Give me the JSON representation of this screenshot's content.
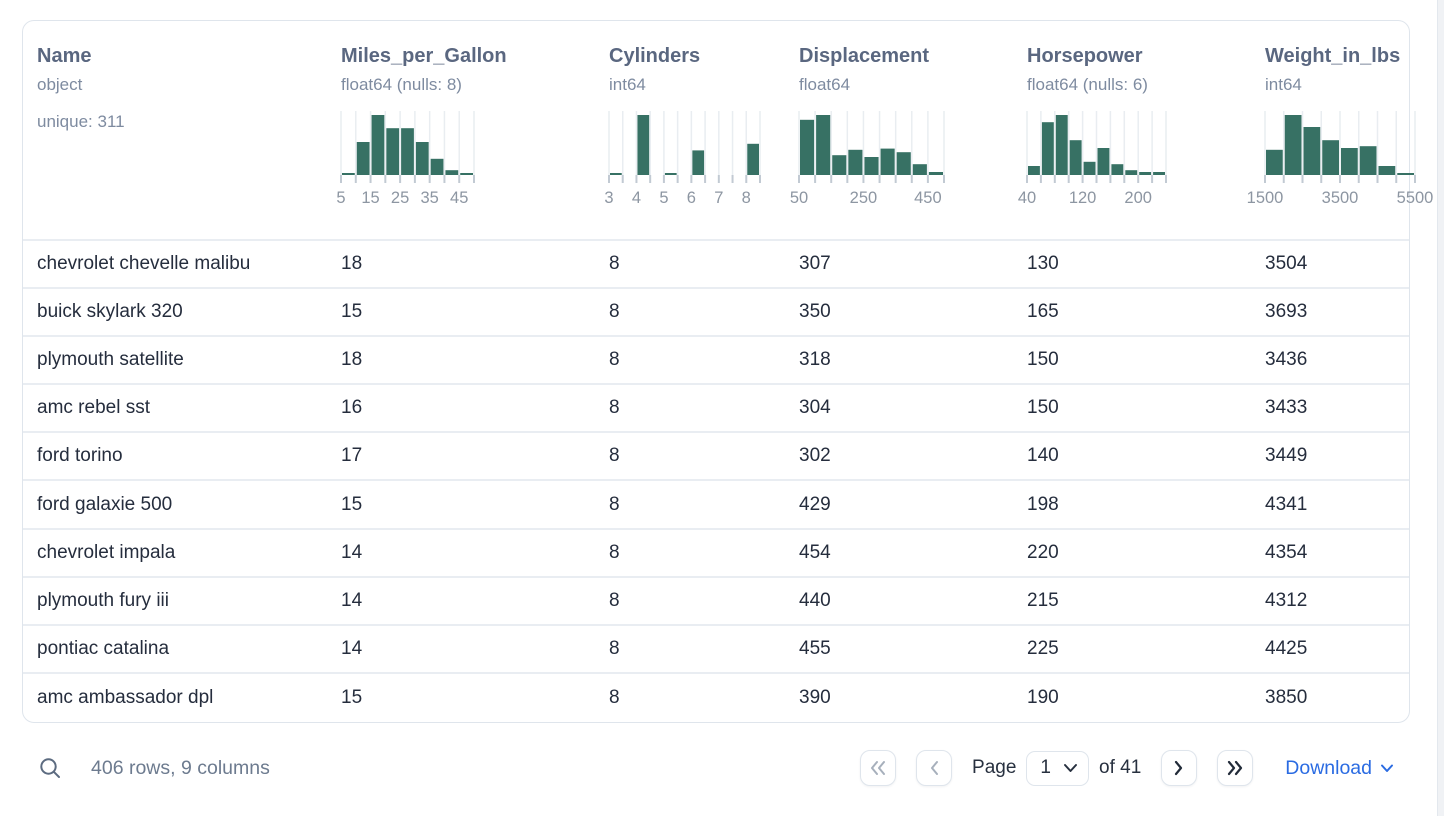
{
  "table": {
    "columns": [
      {
        "name": "Name",
        "type": "object",
        "extra": "unique: 311",
        "hist": null
      },
      {
        "name": "Miles_per_Gallon",
        "type": "float64 (nulls: 8)",
        "hist": {
          "bars": [
            2,
            55,
            100,
            78,
            78,
            55,
            27,
            8,
            2
          ],
          "labels": [
            "5",
            "15",
            "25",
            "35",
            "45"
          ],
          "label_edges": [
            0,
            2,
            4,
            6,
            8
          ]
        }
      },
      {
        "name": "Cylinders",
        "type": "int64",
        "hist": {
          "bars": [
            3,
            0,
            100,
            0,
            2,
            0,
            41,
            0,
            0,
            0,
            52
          ],
          "labels": [
            "3",
            "4",
            "5",
            "6",
            "7",
            "8"
          ],
          "label_edges": [
            0,
            2,
            4,
            6,
            8,
            10
          ]
        }
      },
      {
        "name": "Displacement",
        "type": "float64",
        "hist": {
          "bars": [
            92,
            100,
            33,
            42,
            30,
            44,
            38,
            18,
            5
          ],
          "labels": [
            "50",
            "250",
            "450"
          ],
          "label_edges": [
            0,
            4,
            8
          ]
        }
      },
      {
        "name": "Horsepower",
        "type": "float64 (nulls: 6)",
        "hist": {
          "bars": [
            15,
            88,
            100,
            58,
            22,
            45,
            18,
            8,
            5,
            5
          ],
          "labels": [
            "40",
            "120",
            "200"
          ],
          "label_edges": [
            0,
            4,
            8
          ]
        }
      },
      {
        "name": "Weight_in_lbs",
        "type": "int64",
        "hist": {
          "bars": [
            42,
            100,
            80,
            58,
            45,
            48,
            15,
            2
          ],
          "labels": [
            "1500",
            "3500",
            "5500"
          ],
          "label_edges": [
            0,
            4,
            8
          ]
        }
      }
    ],
    "rows": [
      [
        "chevrolet chevelle malibu",
        "18",
        "8",
        "307",
        "130",
        "3504"
      ],
      [
        "buick skylark 320",
        "15",
        "8",
        "350",
        "165",
        "3693"
      ],
      [
        "plymouth satellite",
        "18",
        "8",
        "318",
        "150",
        "3436"
      ],
      [
        "amc rebel sst",
        "16",
        "8",
        "304",
        "150",
        "3433"
      ],
      [
        "ford torino",
        "17",
        "8",
        "302",
        "140",
        "3449"
      ],
      [
        "ford galaxie 500",
        "15",
        "8",
        "429",
        "198",
        "4341"
      ],
      [
        "chevrolet impala",
        "14",
        "8",
        "454",
        "220",
        "4354"
      ],
      [
        "plymouth fury iii",
        "14",
        "8",
        "440",
        "215",
        "4312"
      ],
      [
        "pontiac catalina",
        "14",
        "8",
        "455",
        "225",
        "4425"
      ],
      [
        "amc ambassador dpl",
        "15",
        "8",
        "390",
        "190",
        "3850"
      ]
    ]
  },
  "footer": {
    "summary": "406 rows, 9 columns",
    "page_label": "Page",
    "page_value": "1",
    "of_label": "of 41",
    "download_label": "Download"
  },
  "icons": {
    "search": "magnifier ⌕",
    "first_page": "double-chevron-left «",
    "prev_page": "chevron-left ‹",
    "next_page": "chevron-right ›",
    "last_page": "double-chevron-right »",
    "select_caret": "chevron-down ⌄",
    "download_caret": "chevron-down ⌄"
  },
  "colors": {
    "histogram_bar": "#377164",
    "header_text": "#5a6780",
    "download_link": "#2a6be2"
  }
}
